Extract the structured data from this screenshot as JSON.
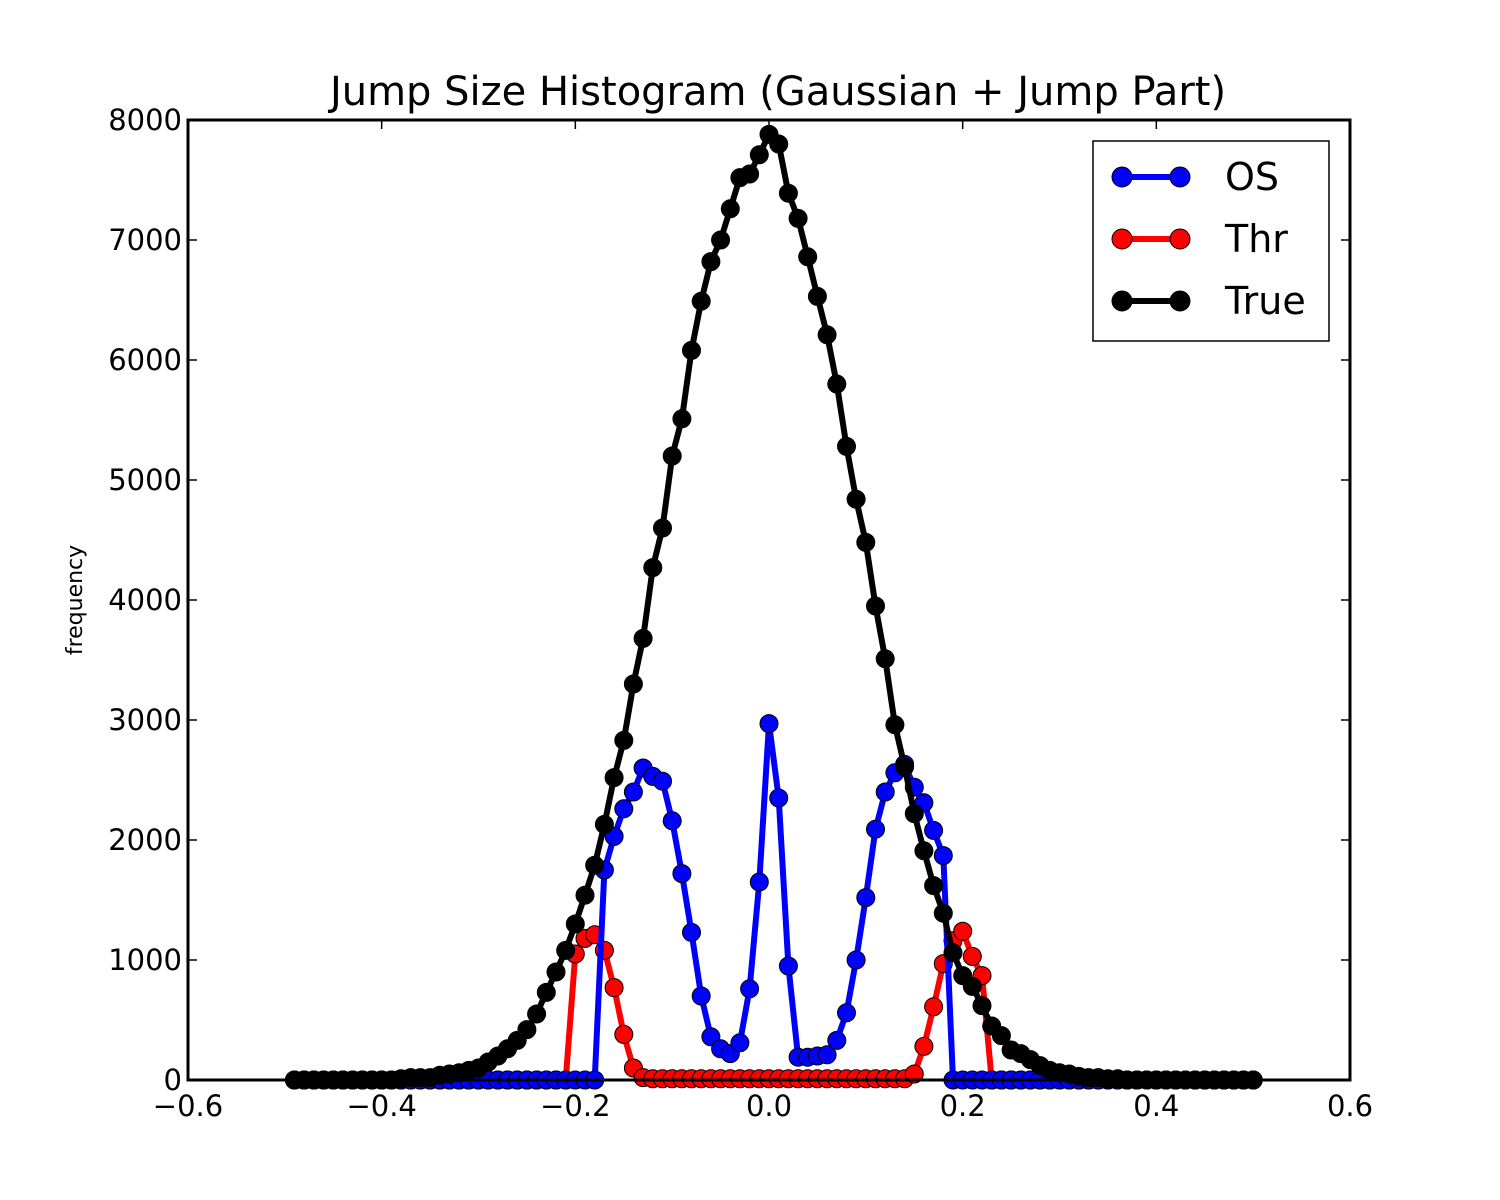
{
  "chart_data": {
    "type": "line",
    "title": "Jump Size Histogram (Gaussian + Jump Part)",
    "xlabel": "",
    "ylabel": "frequency",
    "xlim": [
      -0.6,
      0.6
    ],
    "ylim": [
      0,
      8000
    ],
    "xticks": [
      -0.6,
      -0.4,
      -0.2,
      0.0,
      0.2,
      0.4,
      0.6
    ],
    "xtick_labels": [
      "−0.6",
      "−0.4",
      "−0.2",
      "0.0",
      "0.2",
      "0.4",
      "0.6"
    ],
    "yticks": [
      0,
      1000,
      2000,
      3000,
      4000,
      5000,
      6000,
      7000,
      8000
    ],
    "ytick_labels": [
      "0",
      "1000",
      "2000",
      "3000",
      "4000",
      "5000",
      "6000",
      "7000",
      "8000"
    ],
    "grid": false,
    "legend_position": "top-right",
    "series": [
      {
        "name": "OS",
        "color": "#0000ff",
        "x": [
          -0.49,
          -0.48,
          -0.47,
          -0.46,
          -0.45,
          -0.44,
          -0.43,
          -0.42,
          -0.41,
          -0.4,
          -0.39,
          -0.38,
          -0.37,
          -0.36,
          -0.35,
          -0.34,
          -0.33,
          -0.32,
          -0.31,
          -0.3,
          -0.29,
          -0.28,
          -0.27,
          -0.26,
          -0.25,
          -0.24,
          -0.23,
          -0.22,
          -0.21,
          -0.2,
          -0.19,
          -0.18,
          -0.17,
          -0.16,
          -0.15,
          -0.14,
          -0.13,
          -0.12,
          -0.11,
          -0.1,
          -0.09,
          -0.08,
          -0.07,
          -0.06,
          -0.05,
          -0.04,
          -0.03,
          -0.02,
          -0.01,
          0.0,
          0.01,
          0.02,
          0.03,
          0.04,
          0.05,
          0.06,
          0.07,
          0.08,
          0.09,
          0.1,
          0.11,
          0.12,
          0.13,
          0.14,
          0.15,
          0.16,
          0.17,
          0.18,
          0.19,
          0.2,
          0.21,
          0.22,
          0.23,
          0.24,
          0.25,
          0.26,
          0.27,
          0.28,
          0.29,
          0.3,
          0.31,
          0.32,
          0.33,
          0.34,
          0.35,
          0.36,
          0.37,
          0.38,
          0.39,
          0.4,
          0.41,
          0.42,
          0.43,
          0.44,
          0.45,
          0.46,
          0.47,
          0.48,
          0.49,
          0.5
        ],
        "y": [
          0,
          0,
          0,
          0,
          0,
          0,
          0,
          0,
          0,
          0,
          0,
          0,
          0,
          0,
          0,
          0,
          0,
          0,
          0,
          0,
          0,
          0,
          0,
          0,
          0,
          0,
          0,
          0,
          0,
          0,
          0,
          0,
          1750,
          2030,
          2260,
          2400,
          2600,
          2530,
          2490,
          2160,
          1720,
          1230,
          700,
          360,
          260,
          220,
          310,
          760,
          1650,
          2970,
          2350,
          950,
          190,
          190,
          200,
          210,
          330,
          560,
          1000,
          1520,
          2090,
          2400,
          2560,
          2630,
          2440,
          2310,
          2080,
          1870,
          0,
          0,
          0,
          0,
          0,
          0,
          0,
          0,
          0,
          0,
          0,
          0,
          0,
          0,
          0,
          0,
          0,
          0,
          0,
          0,
          0,
          0,
          0,
          0,
          0,
          0,
          0,
          0,
          0,
          0,
          0,
          0
        ]
      },
      {
        "name": "Thr",
        "color": "#ff0000",
        "x": [
          -0.49,
          -0.48,
          -0.47,
          -0.46,
          -0.45,
          -0.44,
          -0.43,
          -0.42,
          -0.41,
          -0.4,
          -0.39,
          -0.38,
          -0.37,
          -0.36,
          -0.35,
          -0.34,
          -0.33,
          -0.32,
          -0.31,
          -0.3,
          -0.29,
          -0.28,
          -0.27,
          -0.26,
          -0.25,
          -0.24,
          -0.23,
          -0.22,
          -0.21,
          -0.2,
          -0.19,
          -0.18,
          -0.17,
          -0.16,
          -0.15,
          -0.14,
          -0.13,
          -0.12,
          -0.11,
          -0.1,
          -0.09,
          -0.08,
          -0.07,
          -0.06,
          -0.05,
          -0.04,
          -0.03,
          -0.02,
          -0.01,
          0.0,
          0.01,
          0.02,
          0.03,
          0.04,
          0.05,
          0.06,
          0.07,
          0.08,
          0.09,
          0.1,
          0.11,
          0.12,
          0.13,
          0.14,
          0.15,
          0.16,
          0.17,
          0.18,
          0.19,
          0.2,
          0.21,
          0.22,
          0.23,
          0.24,
          0.25,
          0.26,
          0.27,
          0.28,
          0.29,
          0.3,
          0.31,
          0.32,
          0.33,
          0.34,
          0.35,
          0.36,
          0.37,
          0.38,
          0.39,
          0.4,
          0.41,
          0.42,
          0.43,
          0.44,
          0.45,
          0.46,
          0.47,
          0.48,
          0.49,
          0.5
        ],
        "y": [
          0,
          0,
          0,
          0,
          0,
          0,
          0,
          0,
          0,
          0,
          0,
          0,
          0,
          0,
          0,
          0,
          0,
          0,
          0,
          0,
          0,
          0,
          0,
          0,
          0,
          0,
          0,
          0,
          0,
          1050,
          1180,
          1210,
          1080,
          770,
          380,
          100,
          20,
          10,
          10,
          10,
          10,
          10,
          10,
          10,
          10,
          10,
          10,
          10,
          10,
          10,
          10,
          10,
          10,
          10,
          10,
          10,
          10,
          10,
          10,
          10,
          10,
          10,
          10,
          10,
          50,
          280,
          610,
          970,
          1160,
          1240,
          1030,
          870,
          0,
          0,
          0,
          0,
          0,
          0,
          0,
          0,
          0,
          0,
          0,
          0,
          0,
          0,
          0,
          0,
          0,
          0,
          0,
          0,
          0,
          0,
          0,
          0,
          0,
          0,
          0,
          0
        ]
      },
      {
        "name": "True",
        "color": "#000000",
        "x": [
          -0.49,
          -0.48,
          -0.47,
          -0.46,
          -0.45,
          -0.44,
          -0.43,
          -0.42,
          -0.41,
          -0.4,
          -0.39,
          -0.38,
          -0.37,
          -0.36,
          -0.35,
          -0.34,
          -0.33,
          -0.32,
          -0.31,
          -0.3,
          -0.29,
          -0.28,
          -0.27,
          -0.26,
          -0.25,
          -0.24,
          -0.23,
          -0.22,
          -0.21,
          -0.2,
          -0.19,
          -0.18,
          -0.17,
          -0.16,
          -0.15,
          -0.14,
          -0.13,
          -0.12,
          -0.11,
          -0.1,
          -0.09,
          -0.08,
          -0.07,
          -0.06,
          -0.05,
          -0.04,
          -0.03,
          -0.02,
          -0.01,
          0.0,
          0.01,
          0.02,
          0.03,
          0.04,
          0.05,
          0.06,
          0.07,
          0.08,
          0.09,
          0.1,
          0.11,
          0.12,
          0.13,
          0.14,
          0.15,
          0.16,
          0.17,
          0.18,
          0.19,
          0.2,
          0.21,
          0.22,
          0.23,
          0.24,
          0.25,
          0.26,
          0.27,
          0.28,
          0.29,
          0.3,
          0.31,
          0.32,
          0.33,
          0.34,
          0.35,
          0.36,
          0.37,
          0.38,
          0.39,
          0.4,
          0.41,
          0.42,
          0.43,
          0.44,
          0.45,
          0.46,
          0.47,
          0.48,
          0.49,
          0.5
        ],
        "y": [
          0,
          0,
          0,
          0,
          0,
          0,
          0,
          0,
          0,
          0,
          0,
          10,
          20,
          20,
          20,
          40,
          50,
          60,
          80,
          100,
          150,
          200,
          260,
          330,
          420,
          550,
          730,
          900,
          1080,
          1300,
          1540,
          1790,
          2130,
          2520,
          2830,
          3300,
          3680,
          4270,
          4600,
          5200,
          5510,
          6080,
          6490,
          6820,
          7000,
          7260,
          7520,
          7550,
          7710,
          7880,
          7800,
          7390,
          7180,
          6860,
          6530,
          6210,
          5800,
          5280,
          4840,
          4480,
          3950,
          3510,
          2960,
          2610,
          2220,
          1910,
          1620,
          1390,
          1060,
          870,
          780,
          620,
          450,
          370,
          250,
          220,
          170,
          120,
          80,
          60,
          50,
          30,
          20,
          20,
          10,
          10,
          0,
          0,
          0,
          0,
          0,
          0,
          0,
          0,
          0,
          0,
          0,
          0,
          0,
          0
        ]
      }
    ]
  }
}
